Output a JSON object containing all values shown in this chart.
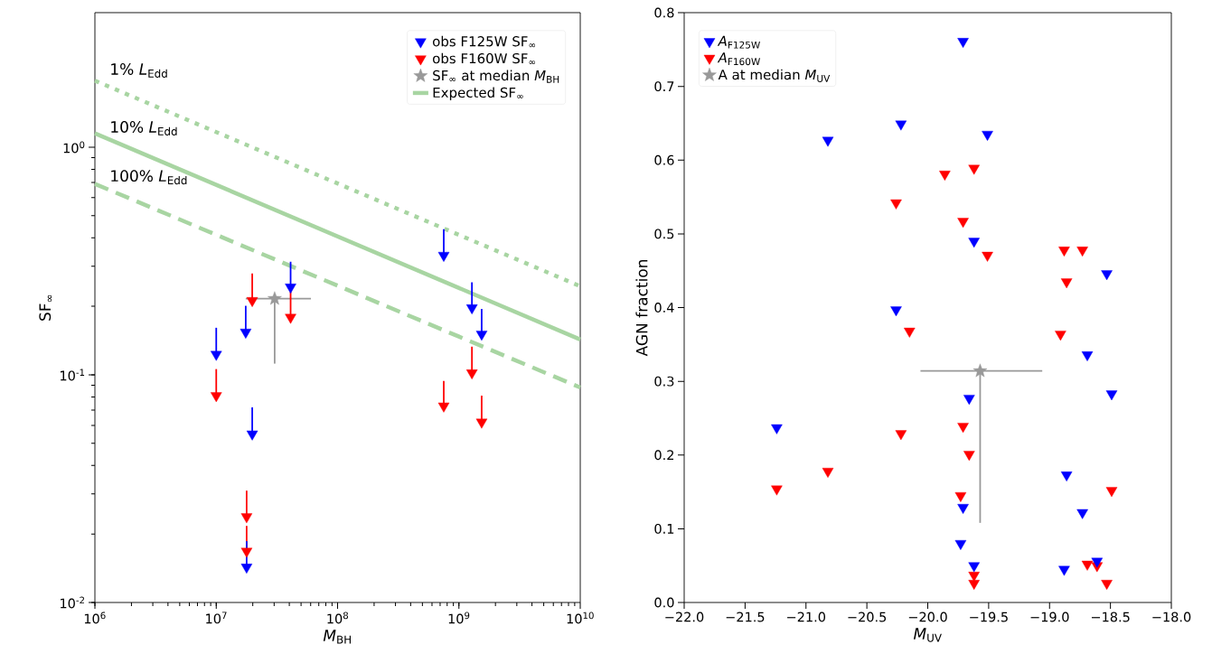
{
  "chart_data": [
    {
      "type": "scatter",
      "log": "xy",
      "xlabel": "*M*$_{BH}$",
      "ylabel": "SF$_{∞}$",
      "xlim": [
        1000000,
        10000000000
      ],
      "ylim": [
        0.01,
        3.9
      ],
      "xticks": [
        {
          "value": 1000000,
          "label": "10$^{6}$"
        },
        {
          "value": 10000000,
          "label": "10$^{7}$"
        },
        {
          "value": 100000000,
          "label": "10$^{8}$"
        },
        {
          "value": 1000000000,
          "label": "10$^{9}$"
        },
        {
          "value": 10000000000,
          "label": "10$^{10}$"
        }
      ],
      "yticks": [
        {
          "value": 0.01,
          "label": "10$^{-2}$"
        },
        {
          "value": 0.1,
          "label": "10$^{-1}$"
        },
        {
          "value": 1,
          "label": "10$^{0}$"
        }
      ],
      "legend": "top right",
      "marker": "triangle",
      "series": [
        {
          "name": "obs F125W SF$_{∞}$",
          "color": "#0000ff",
          "x": [
            10000000,
            17500000,
            19800000,
            41000000,
            17800000,
            750000000,
            1280000000,
            1540000000
          ],
          "values": [
            0.123,
            0.154,
            0.055,
            0.243,
            0.0143,
            0.335,
            0.197,
            0.151
          ],
          "errors": [
            [
              0.123,
              0.161
            ],
            [
              0.154,
              0.201
            ],
            [
              0.055,
              0.072
            ],
            [
              0.243,
              0.314
            ],
            [
              0.0143,
              0.0186
            ],
            [
              0.335,
              0.436
            ],
            [
              0.197,
              0.255
            ],
            [
              0.151,
              0.195
            ]
          ]
        },
        {
          "name": "obs F160W SF$_{∞}$",
          "color": "#ff0000",
          "x": [
            10000000,
            19800000,
            41000000,
            17800000,
            17800000,
            750000000,
            1280000000,
            1540000000
          ],
          "values": [
            0.081,
            0.212,
            0.179,
            0.0238,
            0.0168,
            0.073,
            0.102,
            0.062
          ],
          "errors": [
            [
              0.081,
              0.106
            ],
            [
              0.212,
              0.279
            ],
            [
              0.179,
              0.232
            ],
            [
              0.0238,
              0.031
            ],
            [
              0.0168,
              0.0217
            ],
            [
              0.073,
              0.094
            ],
            [
              0.102,
              0.133
            ],
            [
              0.062,
              0.081
            ]
          ]
        },
        {
          "name": "SF$_{∞}$ at median *M*$_{BH}$",
          "color": "#999999",
          "marker": "star",
          "x": [
            30300000
          ],
          "values": [
            0.216
          ],
          "errors": [
            [
              0.112,
              0.216
            ]
          ],
          "xerrors": [
            [
              17500000,
              60300000
            ]
          ]
        },
        {
          "name": "Expected SF$_{∞}$",
          "type": "line",
          "marker": "none",
          "line_style": "solid",
          "color": "#a8d5a2",
          "x": [
            1000000,
            10000000000
          ],
          "values": [
            1.15,
            0.143
          ]
        },
        {
          "type": "line",
          "marker": "none",
          "line_style": "dotted",
          "color": "#a8d5a2",
          "x": [
            1000000,
            10000000000
          ],
          "values": [
            1.96,
            0.245
          ]
        },
        {
          "type": "line",
          "marker": "none",
          "line_style": "dashed",
          "color": "#a8d5a2",
          "x": [
            1000000,
            10000000000
          ],
          "values": [
            0.69,
            0.088
          ]
        }
      ],
      "annotations": [
        "1% *L*$_{Edd}$",
        "10% *L*$_{Edd}$",
        "100% *L*$_{Edd}$"
      ]
    },
    {
      "type": "scatter",
      "xlabel": "*M*$_{UV}$",
      "ylabel": "AGN fraction",
      "xlim": [
        -22,
        -18
      ],
      "ylim": [
        0,
        0.8
      ],
      "xticks": [
        {
          "value": -22,
          "label": "−22.0"
        },
        {
          "value": -21.5,
          "label": "−21.5"
        },
        {
          "value": -21,
          "label": "−21.0"
        },
        {
          "value": -20.5,
          "label": "−20.5"
        },
        {
          "value": -20,
          "label": "−20.0"
        },
        {
          "value": -19.5,
          "label": "−19.5"
        },
        {
          "value": -19,
          "label": "−19.0"
        },
        {
          "value": -18.5,
          "label": "−18.5"
        },
        {
          "value": -18,
          "label": "−18.0"
        }
      ],
      "yticks": [
        {
          "value": 0,
          "label": "0.0"
        },
        0.1,
        0.2,
        0.3,
        0.4,
        0.5,
        0.6,
        0.7,
        0.8
      ],
      "legend": "top left",
      "marker": "triangle",
      "series": [
        {
          "name": "*A*$_{F125W}$",
          "color": "#0000ff",
          "x": [
            -21.24,
            -20.82,
            -20.22,
            -20.26,
            -19.71,
            -19.51,
            -19.62,
            -18.53,
            -18.69,
            -18.49,
            -19.66,
            -18.86,
            -19.71,
            -18.73,
            -19.73,
            -18.88,
            -19.62,
            -18.61
          ],
          "values": [
            0.237,
            0.627,
            0.649,
            0.397,
            0.761,
            0.635,
            0.49,
            0.446,
            0.336,
            0.283,
            0.277,
            0.173,
            0.129,
            0.122,
            0.08,
            0.045,
            0.05,
            0.056
          ]
        },
        {
          "name": "*A*$_{F160W}$",
          "color": "#ff0000",
          "x": [
            -21.24,
            -20.82,
            -20.26,
            -20.15,
            -20.22,
            -19.86,
            -19.62,
            -19.71,
            -19.51,
            -18.88,
            -18.73,
            -18.86,
            -18.91,
            -19.71,
            -19.66,
            -18.49,
            -19.73,
            -18.69,
            -18.61,
            -18.53,
            -19.62,
            -19.62
          ],
          "values": [
            0.154,
            0.178,
            0.542,
            0.368,
            0.229,
            0.581,
            0.589,
            0.517,
            0.471,
            0.478,
            0.478,
            0.435,
            0.364,
            0.239,
            0.201,
            0.152,
            0.145,
            0.052,
            0.05,
            0.026,
            0.037,
            0.026
          ]
        },
        {
          "name": "A at median *M*$_{UV}$",
          "color": "#999999",
          "marker": "star",
          "x": [
            -19.57
          ],
          "values": [
            0.314
          ],
          "errors": [
            [
              0.108,
              0.314
            ]
          ],
          "xerrors": [
            [
              -20.06,
              -19.06
            ]
          ]
        }
      ]
    }
  ]
}
